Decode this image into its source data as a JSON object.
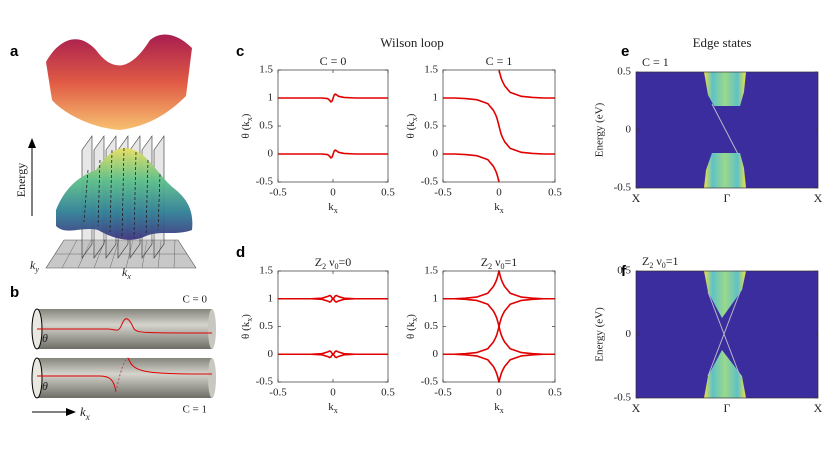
{
  "panel_labels": [
    "a",
    "b",
    "c",
    "d",
    "e",
    "f"
  ],
  "group_titles": [
    "Wilson loop",
    "Edge states"
  ],
  "panel_a": {
    "energy_label": "Energy",
    "ky": [
      "k",
      "y"
    ],
    "kx": [
      "k",
      "x"
    ]
  },
  "panel_b": {
    "top_label": "C = 0",
    "bottom_label": "C = 1",
    "theta_labels": [
      "θ",
      "θ"
    ],
    "kx": [
      "k",
      "x"
    ]
  },
  "chart_data": [
    {
      "type": "line",
      "title": [
        "C = 0"
      ],
      "xlabel": [
        "k",
        "x"
      ],
      "ylabel": [
        "θ (k",
        "x",
        ")"
      ],
      "x": [
        -0.5,
        -0.4,
        -0.3,
        -0.2,
        -0.1,
        -0.05,
        -0.03,
        -0.02,
        -0.01,
        0,
        0.01,
        0.02,
        0.03,
        0.05,
        0.1,
        0.2,
        0.3,
        0.4,
        0.5
      ],
      "xlim": [
        -0.5,
        0.5
      ],
      "xticks": [
        -0.5,
        0,
        0.5
      ],
      "ylim": [
        -0.5,
        1.5
      ],
      "yticks": [
        -0.5,
        0,
        0.5,
        1,
        1.5
      ],
      "series": [
        {
          "color": "#e00000",
          "values": [
            1,
            1,
            1,
            1,
            1,
            0.99,
            0.96,
            0.93,
            0.94,
            0.99,
            1.05,
            1.07,
            1.06,
            1.03,
            1.01,
            1,
            1,
            1,
            1
          ]
        },
        {
          "color": "#e00000",
          "values": [
            0,
            0,
            0,
            0,
            0,
            -0.01,
            -0.04,
            -0.07,
            -0.06,
            -0.01,
            0.05,
            0.07,
            0.06,
            0.03,
            0.01,
            0,
            0,
            0,
            0
          ]
        }
      ]
    },
    {
      "type": "line",
      "title": [
        "C = 1"
      ],
      "xlabel": [
        "k",
        "x"
      ],
      "ylabel": [
        "θ (k",
        "x",
        ")"
      ],
      "x": [
        -0.5,
        -0.4,
        -0.3,
        -0.2,
        -0.1,
        -0.05,
        -0.03,
        -0.02,
        -0.01,
        0,
        0.01,
        0.02,
        0.03,
        0.05,
        0.1,
        0.2,
        0.3,
        0.4,
        0.5
      ],
      "xlim": [
        -0.5,
        0.5
      ],
      "xticks": [
        -0.5,
        0,
        0.5
      ],
      "ylim": [
        -0.5,
        1.5
      ],
      "yticks": [
        -0.5,
        0,
        0.5,
        1,
        1.5
      ],
      "series": [
        {
          "color": "#e00000",
          "values": [
            1,
            1,
            0.99,
            0.97,
            0.9,
            0.78,
            0.7,
            0.65,
            0.58,
            0.5,
            0.42,
            0.35,
            0.3,
            0.22,
            0.1,
            0.03,
            0.01,
            0,
            0
          ]
        },
        {
          "color": "#e00000",
          "values": [
            null,
            null,
            null,
            null,
            null,
            null,
            null,
            null,
            null,
            1.5,
            1.42,
            1.35,
            1.3,
            1.22,
            1.1,
            1.03,
            1.01,
            1,
            1
          ]
        },
        {
          "color": "#e00000",
          "values": [
            0,
            0,
            -0.01,
            -0.03,
            -0.1,
            -0.22,
            -0.3,
            -0.35,
            -0.42,
            -0.5,
            null,
            null,
            null,
            null,
            null,
            null,
            null,
            null,
            null
          ]
        }
      ]
    },
    {
      "type": "line",
      "title": [
        "Z",
        "2",
        " ν",
        "0",
        "=0"
      ],
      "xlabel": [
        "k",
        "x"
      ],
      "ylabel": [
        "θ (k",
        "x",
        ")"
      ],
      "x": [
        -0.5,
        -0.4,
        -0.3,
        -0.2,
        -0.1,
        -0.05,
        -0.03,
        -0.02,
        -0.01,
        0,
        0.01,
        0.02,
        0.03,
        0.05,
        0.1,
        0.2,
        0.3,
        0.4,
        0.5
      ],
      "xlim": [
        -0.5,
        0.5
      ],
      "xticks": [
        -0.5,
        0,
        0.5
      ],
      "ylim": [
        -0.5,
        1.5
      ],
      "yticks": [
        -0.5,
        0,
        0.5,
        1,
        1.5
      ],
      "series": [
        {
          "color": "#e00000",
          "values": [
            1,
            1,
            1,
            1,
            1.01,
            1.04,
            1.06,
            1.05,
            1.02,
            1,
            1.02,
            1.05,
            1.06,
            1.04,
            1.01,
            1,
            1,
            1,
            1
          ]
        },
        {
          "color": "#e00000",
          "values": [
            1,
            1,
            1,
            1,
            0.99,
            0.96,
            0.94,
            0.95,
            0.98,
            1,
            0.98,
            0.95,
            0.94,
            0.96,
            0.99,
            1,
            1,
            1,
            1
          ]
        },
        {
          "color": "#e00000",
          "values": [
            0,
            0,
            0,
            0,
            0.01,
            0.04,
            0.06,
            0.05,
            0.02,
            0,
            0.02,
            0.05,
            0.06,
            0.04,
            0.01,
            0,
            0,
            0,
            0
          ]
        },
        {
          "color": "#e00000",
          "values": [
            0,
            0,
            0,
            0,
            -0.01,
            -0.04,
            -0.06,
            -0.05,
            -0.02,
            0,
            -0.02,
            -0.05,
            -0.06,
            -0.04,
            -0.01,
            0,
            0,
            0,
            0
          ]
        }
      ]
    },
    {
      "type": "line",
      "title": [
        "Z",
        "2",
        " ν",
        "0",
        "=1"
      ],
      "xlabel": [
        "k",
        "x"
      ],
      "ylabel": [
        "θ (k",
        "x",
        ")"
      ],
      "x": [
        -0.5,
        -0.4,
        -0.3,
        -0.2,
        -0.1,
        -0.05,
        -0.03,
        -0.02,
        -0.01,
        0,
        0.01,
        0.02,
        0.03,
        0.05,
        0.1,
        0.2,
        0.3,
        0.4,
        0.5
      ],
      "xlim": [
        -0.5,
        0.5
      ],
      "xticks": [
        -0.5,
        0,
        0.5
      ],
      "ylim": [
        -0.5,
        1.5
      ],
      "yticks": [
        -0.5,
        0,
        0.5,
        1,
        1.5
      ],
      "series": [
        {
          "color": "#e00000",
          "values": [
            1,
            1,
            1.01,
            1.03,
            1.1,
            1.22,
            1.3,
            1.35,
            1.42,
            1.5,
            1.42,
            1.35,
            1.3,
            1.22,
            1.1,
            1.03,
            1.01,
            1,
            1
          ]
        },
        {
          "color": "#e00000",
          "values": [
            0,
            0,
            -0.01,
            -0.03,
            -0.1,
            -0.22,
            -0.3,
            -0.35,
            -0.42,
            -0.5,
            -0.42,
            -0.35,
            -0.3,
            -0.22,
            -0.1,
            -0.03,
            -0.01,
            0,
            0
          ]
        },
        {
          "color": "#e00000",
          "values": [
            1,
            1,
            0.99,
            0.97,
            0.9,
            0.78,
            0.7,
            0.65,
            0.58,
            0.5,
            0.42,
            0.35,
            0.3,
            0.22,
            0.1,
            0.03,
            0.01,
            0,
            0
          ]
        },
        {
          "color": "#e00000",
          "values": [
            0,
            0,
            0.01,
            0.03,
            0.1,
            0.22,
            0.3,
            0.35,
            0.42,
            0.5,
            0.58,
            0.65,
            0.7,
            0.78,
            0.9,
            0.97,
            0.99,
            1,
            1
          ]
        }
      ]
    },
    {
      "type": "heatmap",
      "title": [
        "C = 1"
      ],
      "ylabel": "Energy (eV)",
      "categories": [
        "X",
        "Γ",
        "X"
      ],
      "ylim": [
        -0.5,
        0.5
      ],
      "yticks": [
        -0.5,
        0,
        0.5
      ]
    },
    {
      "type": "heatmap",
      "title": [
        "Z",
        "2",
        " ν",
        "0",
        "=1"
      ],
      "ylabel": "Energy (eV)",
      "categories": [
        "X",
        "Γ",
        "X"
      ],
      "ylim": [
        -0.5,
        0.5
      ],
      "yticks": [
        -0.5,
        0,
        0.5
      ]
    }
  ]
}
